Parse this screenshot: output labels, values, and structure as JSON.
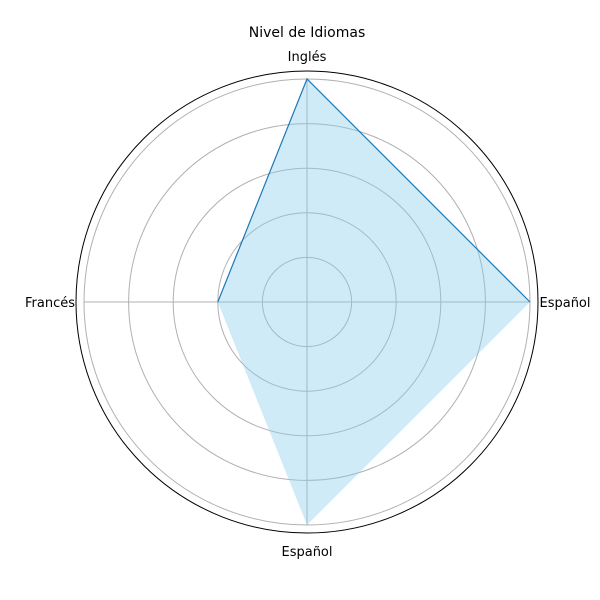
{
  "chart_data": {
    "type": "radar",
    "title": "Nivel de Idiomas",
    "categories": [
      "Español",
      "Inglés",
      "Francés",
      "Español"
    ],
    "values": [
      5,
      5,
      2,
      5
    ],
    "rlim": [
      0,
      5
    ],
    "rgrid": [
      1,
      2,
      3,
      4,
      5
    ],
    "grid": true,
    "colors": {
      "line": "#1f77b4",
      "fill": "#87ceeb",
      "grid": "#b0b0b0",
      "frame": "#000000"
    }
  }
}
